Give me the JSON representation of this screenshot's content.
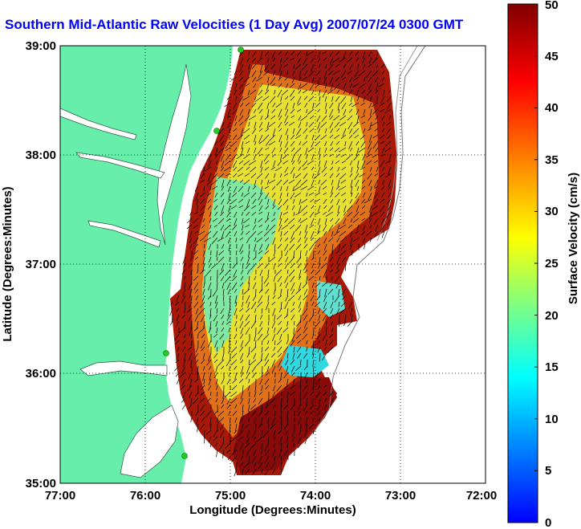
{
  "title": "Southern Mid-Atlantic Raw Velocities (1 Day Avg) 2007/07/24 0300 GMT",
  "chart_data": {
    "type": "heatmap",
    "title": "Southern Mid-Atlantic Raw Velocities (1 Day Avg) 2007/07/24 0300 GMT",
    "xlabel": "Longitude (Degrees:Minutes)",
    "ylabel": "Latitude (Degrees:Minutes)",
    "x_ticks": [
      "77:00",
      "76:00",
      "75:00",
      "74:00",
      "73:00",
      "72:00"
    ],
    "y_ticks": [
      "39:00",
      "38:00",
      "37:00",
      "36:00",
      "35:00"
    ],
    "xlim": [
      -77,
      -72
    ],
    "ylim": [
      35,
      39
    ],
    "grid": true,
    "colorbar": {
      "label": "Surface Velocity (cm/s)",
      "ticks": [
        "0",
        "5",
        "10",
        "15",
        "20",
        "25",
        "30",
        "35",
        "40",
        "45",
        "50"
      ],
      "range": [
        0,
        50
      ],
      "colormap": [
        "#0000ff",
        "#0080ff",
        "#00ffff",
        "#80ff80",
        "#ffff00",
        "#ff8000",
        "#ff0000",
        "#800000"
      ]
    },
    "colors": {
      "land": "#66eeaa",
      "water": "#ffffff",
      "vector": "#000000",
      "station": "#22cc22"
    }
  }
}
